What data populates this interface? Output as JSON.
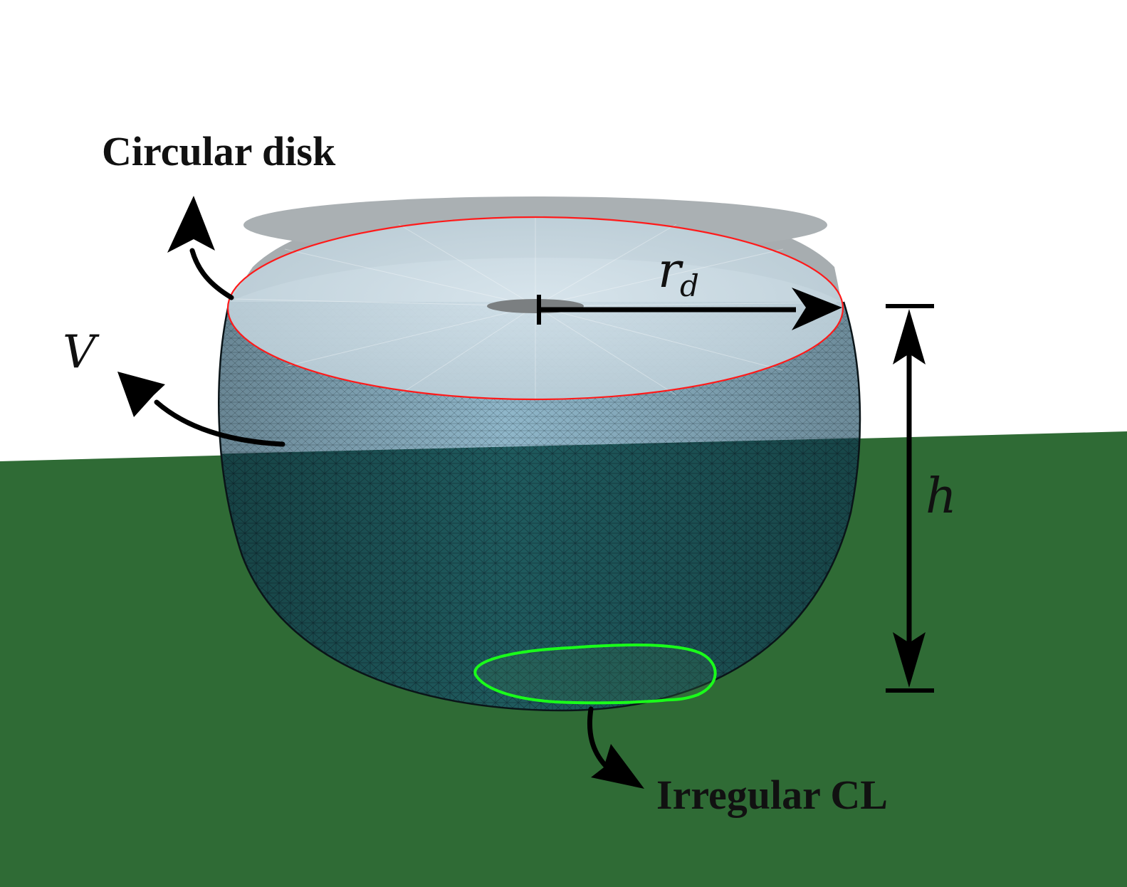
{
  "labels": {
    "circular_disk": "Circular disk",
    "volume": "V",
    "radius_main": "r",
    "radius_sub": "d",
    "height": "h",
    "contact_line": "Irregular CL"
  },
  "colors": {
    "background": "#ffffff",
    "substrate": "#2f6b35",
    "droplet_above": "#8fb6c9",
    "droplet_below": "#1f5b5e",
    "disk_face": "#c3d3dc",
    "disk_rim": "#a7adb0",
    "disk_outline": "#ff1a1a",
    "contact_line": "#1aff1a",
    "arrows": "#000000",
    "text": "#111111"
  },
  "icons": {
    "disk_pointer": "curved-arrow-icon",
    "volume_pointer": "curved-arrow-icon",
    "contact_line_pointer": "curved-arrow-icon",
    "radius_arrow": "arrow-right-icon",
    "height_arrow": "double-arrow-vertical-icon"
  }
}
